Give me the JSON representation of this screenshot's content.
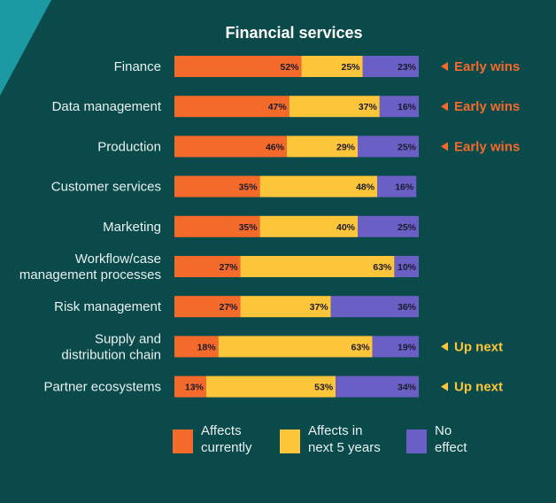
{
  "chart_data": {
    "type": "bar",
    "stacked": true,
    "orientation": "horizontal",
    "title": "Financial services",
    "categories": [
      [
        "Finance"
      ],
      [
        "Data management"
      ],
      [
        "Production"
      ],
      [
        "Customer services"
      ],
      [
        "Marketing"
      ],
      [
        "Workflow/case",
        "management processes"
      ],
      [
        "Risk management"
      ],
      [
        "Supply and",
        "distribution chain"
      ],
      [
        "Partner ecosystems"
      ]
    ],
    "series": [
      {
        "name": "Affects currently",
        "color": "#f46a2a",
        "values": [
          52,
          47,
          46,
          35,
          35,
          27,
          27,
          18,
          13
        ]
      },
      {
        "name": "Affects in next 5 years",
        "color": "#fdc53a",
        "values": [
          25,
          37,
          29,
          48,
          40,
          63,
          37,
          63,
          53
        ]
      },
      {
        "name": "No effect",
        "color": "#6a5fc4",
        "values": [
          23,
          16,
          25,
          16,
          25,
          10,
          36,
          19,
          34
        ]
      }
    ],
    "annotations": [
      {
        "label": "Early wins",
        "color": "#f46a2a"
      },
      {
        "label": "Early wins",
        "color": "#f46a2a"
      },
      {
        "label": "Early wins",
        "color": "#f46a2a"
      },
      null,
      null,
      null,
      null,
      {
        "label": "Up next",
        "color": "#fdc53a"
      },
      {
        "label": "Up next",
        "color": "#fdc53a"
      }
    ],
    "legend": {
      "placement": "bottom",
      "items": [
        [
          "Affects",
          "currently"
        ],
        [
          "Affects in",
          "next 5 years"
        ],
        [
          "No",
          "effect"
        ]
      ]
    },
    "value_suffix": "%",
    "ylim": [
      0,
      100
    ]
  },
  "colors": {
    "background": "#0b4a4a",
    "corner_accent": "#1b9aa3"
  }
}
